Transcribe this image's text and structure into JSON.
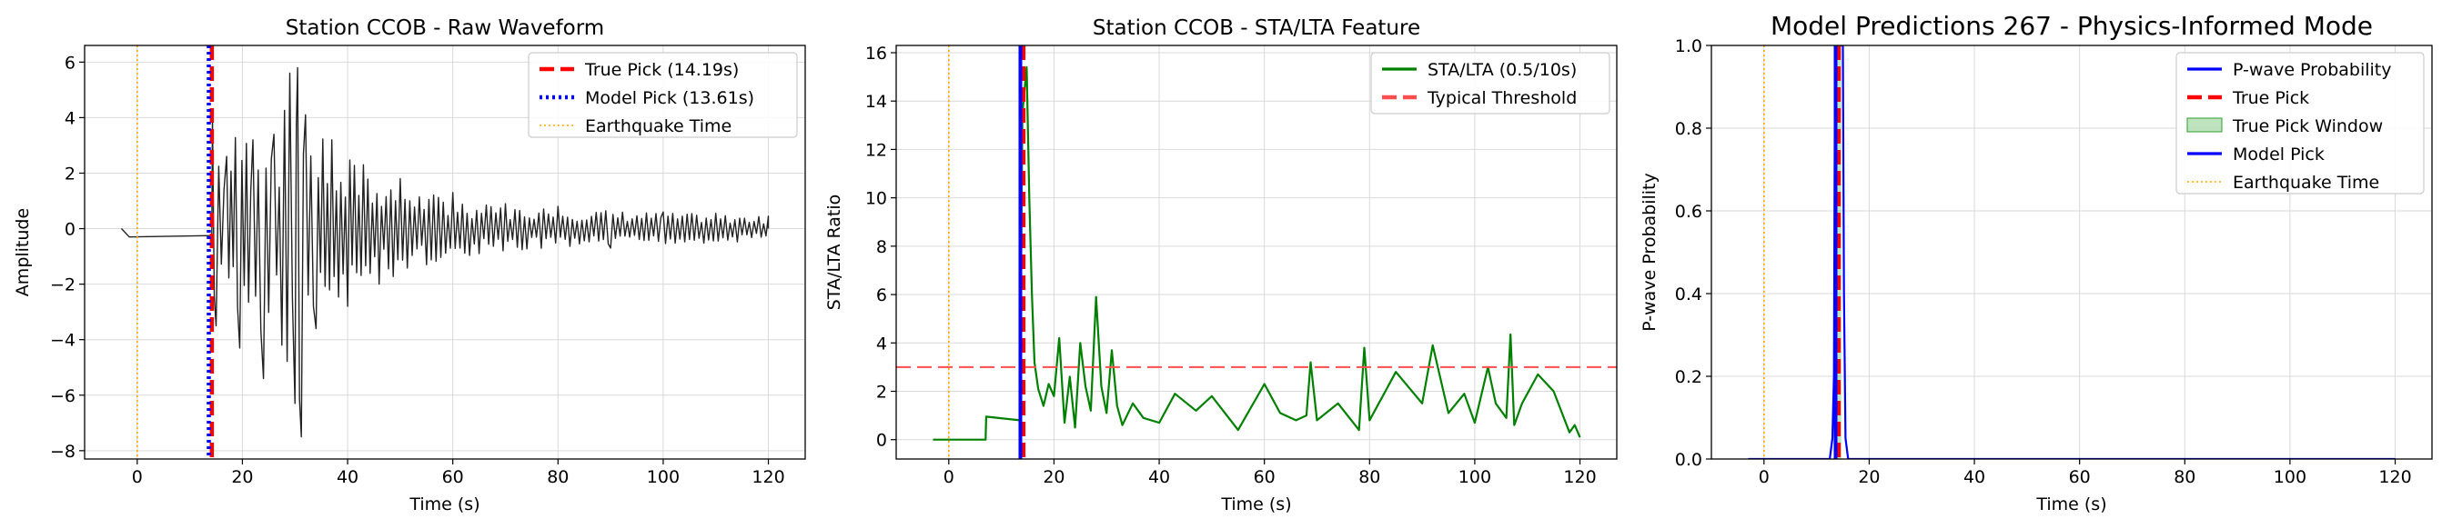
{
  "chart_data": [
    {
      "type": "line",
      "title": "Station CCOB - Raw Waveform",
      "xlabel": "Time (s)",
      "ylabel": "Amplitude",
      "xlim": [
        -10,
        127
      ],
      "ylim": [
        -8.3,
        6.6
      ],
      "xticks": [
        0,
        20,
        40,
        60,
        80,
        100,
        120
      ],
      "yticks": [
        -8,
        -6,
        -4,
        -2,
        0,
        2,
        4,
        6
      ],
      "ytick_labels": [
        "−8",
        "−6",
        "−4",
        "−2",
        "0",
        "2",
        "4",
        "6"
      ],
      "grid": true,
      "legend_position": "top-right",
      "series": [
        {
          "name": "",
          "style": "waveform",
          "color": "#222222",
          "x_start": -3,
          "pre_signal_value": -0.3,
          "onset": 14.19,
          "x_end": 120,
          "peak_points": [
            [
              14.3,
              4.1
            ],
            [
              15,
              -3.5
            ],
            [
              17,
              2.6
            ],
            [
              19.5,
              -4.3
            ],
            [
              22,
              3.2
            ],
            [
              24,
              -5.4
            ],
            [
              26,
              3.4
            ],
            [
              27.5,
              -4.2
            ],
            [
              29,
              5.6
            ],
            [
              30,
              -6.3
            ],
            [
              30.5,
              5.8
            ],
            [
              31.2,
              -7.5
            ],
            [
              32,
              4.1
            ],
            [
              34,
              -3.6
            ],
            [
              37,
              3.2
            ],
            [
              40,
              -2.8
            ],
            [
              43,
              2.3
            ],
            [
              46,
              -2.0
            ],
            [
              50,
              1.8
            ],
            [
              55,
              -1.3
            ],
            [
              60,
              1.3
            ],
            [
              65,
              -0.9
            ],
            [
              70,
              0.9
            ],
            [
              80,
              0.8
            ],
            [
              90,
              -0.7
            ],
            [
              100,
              0.6
            ],
            [
              110,
              0.55
            ],
            [
              120,
              0.45
            ]
          ]
        }
      ],
      "vlines": [
        {
          "name": "True Pick (14.19s)",
          "x": 14.19,
          "color": "#ff0000",
          "style": "dashed"
        },
        {
          "name": "Model Pick (13.61s)",
          "x": 13.61,
          "color": "#0000ff",
          "style": "dotted"
        },
        {
          "name": "Earthquake Time",
          "x": 0,
          "color": "#ffa500",
          "style": "dotted"
        }
      ],
      "legend": [
        {
          "label": "True Pick (14.19s)",
          "color": "#ff0000",
          "style": "dashed"
        },
        {
          "label": "Model Pick (13.61s)",
          "color": "#0000ff",
          "style": "dotted"
        },
        {
          "label": "Earthquake Time",
          "color": "#ffa500",
          "style": "dotted-thin"
        }
      ]
    },
    {
      "type": "line",
      "title": "Station CCOB - STA/LTA Feature",
      "xlabel": "Time (s)",
      "ylabel": "STA/LTA Ratio",
      "xlim": [
        -10,
        127
      ],
      "ylim": [
        -0.8,
        16.3
      ],
      "xticks": [
        0,
        20,
        40,
        60,
        80,
        100,
        120
      ],
      "yticks": [
        0,
        2,
        4,
        6,
        8,
        10,
        12,
        14,
        16
      ],
      "grid": true,
      "legend_position": "top-right",
      "series": [
        {
          "name": "STA/LTA (0.5/10s)",
          "color": "#008000",
          "x": [
            -3,
            7,
            7.1,
            13.5,
            14,
            14.8,
            15.3,
            15.8,
            16.3,
            17,
            18,
            19,
            20,
            21,
            22,
            23,
            24,
            25,
            26,
            27,
            28,
            29,
            30,
            31,
            32,
            33,
            35,
            37,
            40,
            43,
            47,
            50,
            55,
            60,
            63,
            66,
            68,
            68.8,
            70,
            74,
            78,
            79,
            80,
            85,
            90,
            92,
            95,
            98,
            100,
            102.5,
            104,
            106,
            106.8,
            107.5,
            109,
            112,
            115,
            118,
            119,
            120
          ],
          "y": [
            0,
            0,
            0.95,
            0.8,
            13.5,
            15.4,
            10,
            6,
            3.2,
            2.1,
            1.4,
            2.3,
            1.8,
            4.2,
            0.7,
            2.6,
            0.5,
            4.0,
            2.2,
            1.2,
            5.9,
            2.2,
            1.1,
            3.7,
            1.4,
            0.6,
            1.5,
            0.9,
            0.7,
            1.9,
            1.2,
            1.8,
            0.4,
            2.3,
            1.1,
            0.8,
            1.0,
            3.2,
            0.8,
            1.5,
            0.4,
            3.8,
            0.8,
            2.8,
            1.5,
            3.9,
            1.1,
            1.9,
            0.7,
            3.0,
            1.5,
            0.9,
            4.35,
            0.6,
            1.5,
            2.7,
            2.0,
            0.3,
            0.6,
            0.1
          ]
        }
      ],
      "hlines": [
        {
          "name": "Typical Threshold",
          "y": 3,
          "color": "#ff4d4d",
          "style": "dashed"
        }
      ],
      "vlines": [
        {
          "name": "Earthquake Time",
          "x": 0,
          "color": "#ffa500",
          "style": "dotted"
        },
        {
          "name": "True Pick",
          "x": 14.19,
          "color": "#ff0000",
          "style": "dashed"
        },
        {
          "name": "Model Pick",
          "x": 13.61,
          "color": "#0000ff",
          "style": "solid"
        }
      ],
      "legend": [
        {
          "label": "STA/LTA (0.5/10s)",
          "color": "#008000",
          "style": "solid"
        },
        {
          "label": "Typical Threshold",
          "color": "#ff4d4d",
          "style": "dashed"
        }
      ]
    },
    {
      "type": "line",
      "title": "Model Predictions 267 - Physics-Informed Mode",
      "xlabel": "Time (s)",
      "ylabel": "P-wave Probability",
      "xlim": [
        -10,
        127
      ],
      "ylim": [
        0,
        1
      ],
      "xticks": [
        0,
        20,
        40,
        60,
        80,
        100,
        120
      ],
      "yticks": [
        0.0,
        0.2,
        0.4,
        0.6,
        0.8,
        1.0
      ],
      "ytick_labels": [
        "0.0",
        "0.2",
        "0.4",
        "0.6",
        "0.8",
        "1.0"
      ],
      "grid": true,
      "legend_position": "top-right",
      "series": [
        {
          "name": "P-wave Probability",
          "color": "#0000ff",
          "x": [
            -3,
            12.5,
            13,
            13.3,
            13.5,
            14,
            14.5,
            15,
            15.2,
            15.5,
            16,
            120
          ],
          "y": [
            0,
            0,
            0.05,
            0.2,
            1.0,
            1.0,
            1.0,
            1.0,
            0.4,
            0.05,
            0,
            0
          ]
        }
      ],
      "shaded_regions": [
        {
          "name": "True Pick Window",
          "x_start": 13.69,
          "x_end": 14.69,
          "color": "#2ca02c",
          "opacity": 0.3
        }
      ],
      "vlines": [
        {
          "name": "True Pick",
          "x": 14.19,
          "color": "#ff0000",
          "style": "dashed"
        },
        {
          "name": "Model Pick",
          "x": 13.61,
          "color": "#0000ff",
          "style": "solid"
        },
        {
          "name": "Earthquake Time",
          "x": 0,
          "color": "#ffa500",
          "style": "dotted"
        }
      ],
      "legend": [
        {
          "label": "P-wave Probability",
          "color": "#0000ff",
          "style": "solid"
        },
        {
          "label": "True Pick",
          "color": "#ff0000",
          "style": "dashed"
        },
        {
          "label": "True Pick Window",
          "color": "#2ca02c",
          "style": "patch"
        },
        {
          "label": "Model Pick",
          "color": "#0000ff",
          "style": "solid"
        },
        {
          "label": "Earthquake Time",
          "color": "#ffa500",
          "style": "dotted-thin"
        }
      ]
    }
  ]
}
